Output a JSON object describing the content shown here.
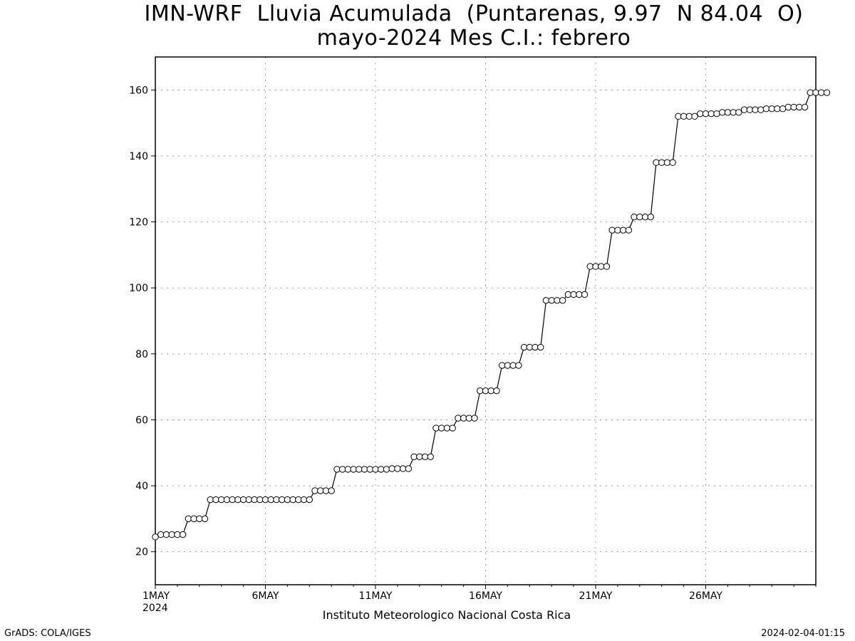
{
  "title_line1": "IMN-WRF  Lluvia Acumulada  (Puntarenas, 9.97  N 84.04  O)",
  "title_line2": "mayo-2024 Mes C.I.: febrero",
  "footer_left": "GrADS: COLA/IGES",
  "footer_right": "2024-02-04-01:15",
  "chart_data": {
    "type": "line",
    "title": "IMN-WRF  Lluvia Acumulada  (Puntarenas, 9.97  N 84.04  O)",
    "subtitle": "mayo-2024 Mes C.I.: febrero",
    "xlabel": "Instituto Meteorologico Nacional Costa Rica",
    "ylabel": "",
    "x_tick_labels": [
      "1MAY",
      "6MAY",
      "11MAY",
      "16MAY",
      "21MAY",
      "26MAY"
    ],
    "x_tick_days": [
      0,
      5,
      10,
      15,
      20,
      25
    ],
    "x_year_label": "2024",
    "x_unit": "days since 1MAY2024 00Z (6-hourly steps)",
    "xlim_days": [
      0,
      30
    ],
    "y_ticks": [
      20,
      40,
      60,
      80,
      100,
      120,
      140,
      160
    ],
    "ylim": [
      10,
      170
    ],
    "grid": true,
    "marker": "open-circle",
    "step_days": 0.25,
    "values": [
      24.5,
      25.2,
      25.2,
      25.2,
      25.2,
      25.2,
      30,
      30,
      30,
      30,
      35.8,
      35.8,
      35.8,
      35.8,
      35.8,
      35.8,
      35.8,
      35.8,
      35.8,
      35.8,
      35.8,
      35.8,
      35.8,
      35.8,
      35.8,
      35.8,
      35.8,
      35.8,
      35.8,
      38.5,
      38.5,
      38.5,
      38.5,
      45,
      45,
      45,
      45,
      45,
      45,
      45,
      45,
      45,
      45,
      45.2,
      45.2,
      45.2,
      45.2,
      48.8,
      48.8,
      48.8,
      48.8,
      57.5,
      57.5,
      57.5,
      57.5,
      60.5,
      60.5,
      60.5,
      60.5,
      68.8,
      68.8,
      68.8,
      68.8,
      76.5,
      76.5,
      76.5,
      76.5,
      82,
      82,
      82,
      82,
      96.2,
      96.2,
      96.2,
      96.2,
      98,
      98,
      98,
      98,
      106.5,
      106.5,
      106.5,
      106.5,
      117.5,
      117.5,
      117.5,
      117.5,
      121.5,
      121.5,
      121.5,
      121.5,
      138,
      138,
      138,
      138,
      152,
      152,
      152,
      152,
      152.8,
      152.8,
      152.8,
      152.8,
      153.2,
      153.2,
      153.2,
      153.2,
      154,
      154,
      154,
      154,
      154.3,
      154.3,
      154.3,
      154.3,
      154.8,
      154.8,
      154.8,
      154.8,
      159.2,
      159.2,
      159.2,
      159.2
    ]
  }
}
